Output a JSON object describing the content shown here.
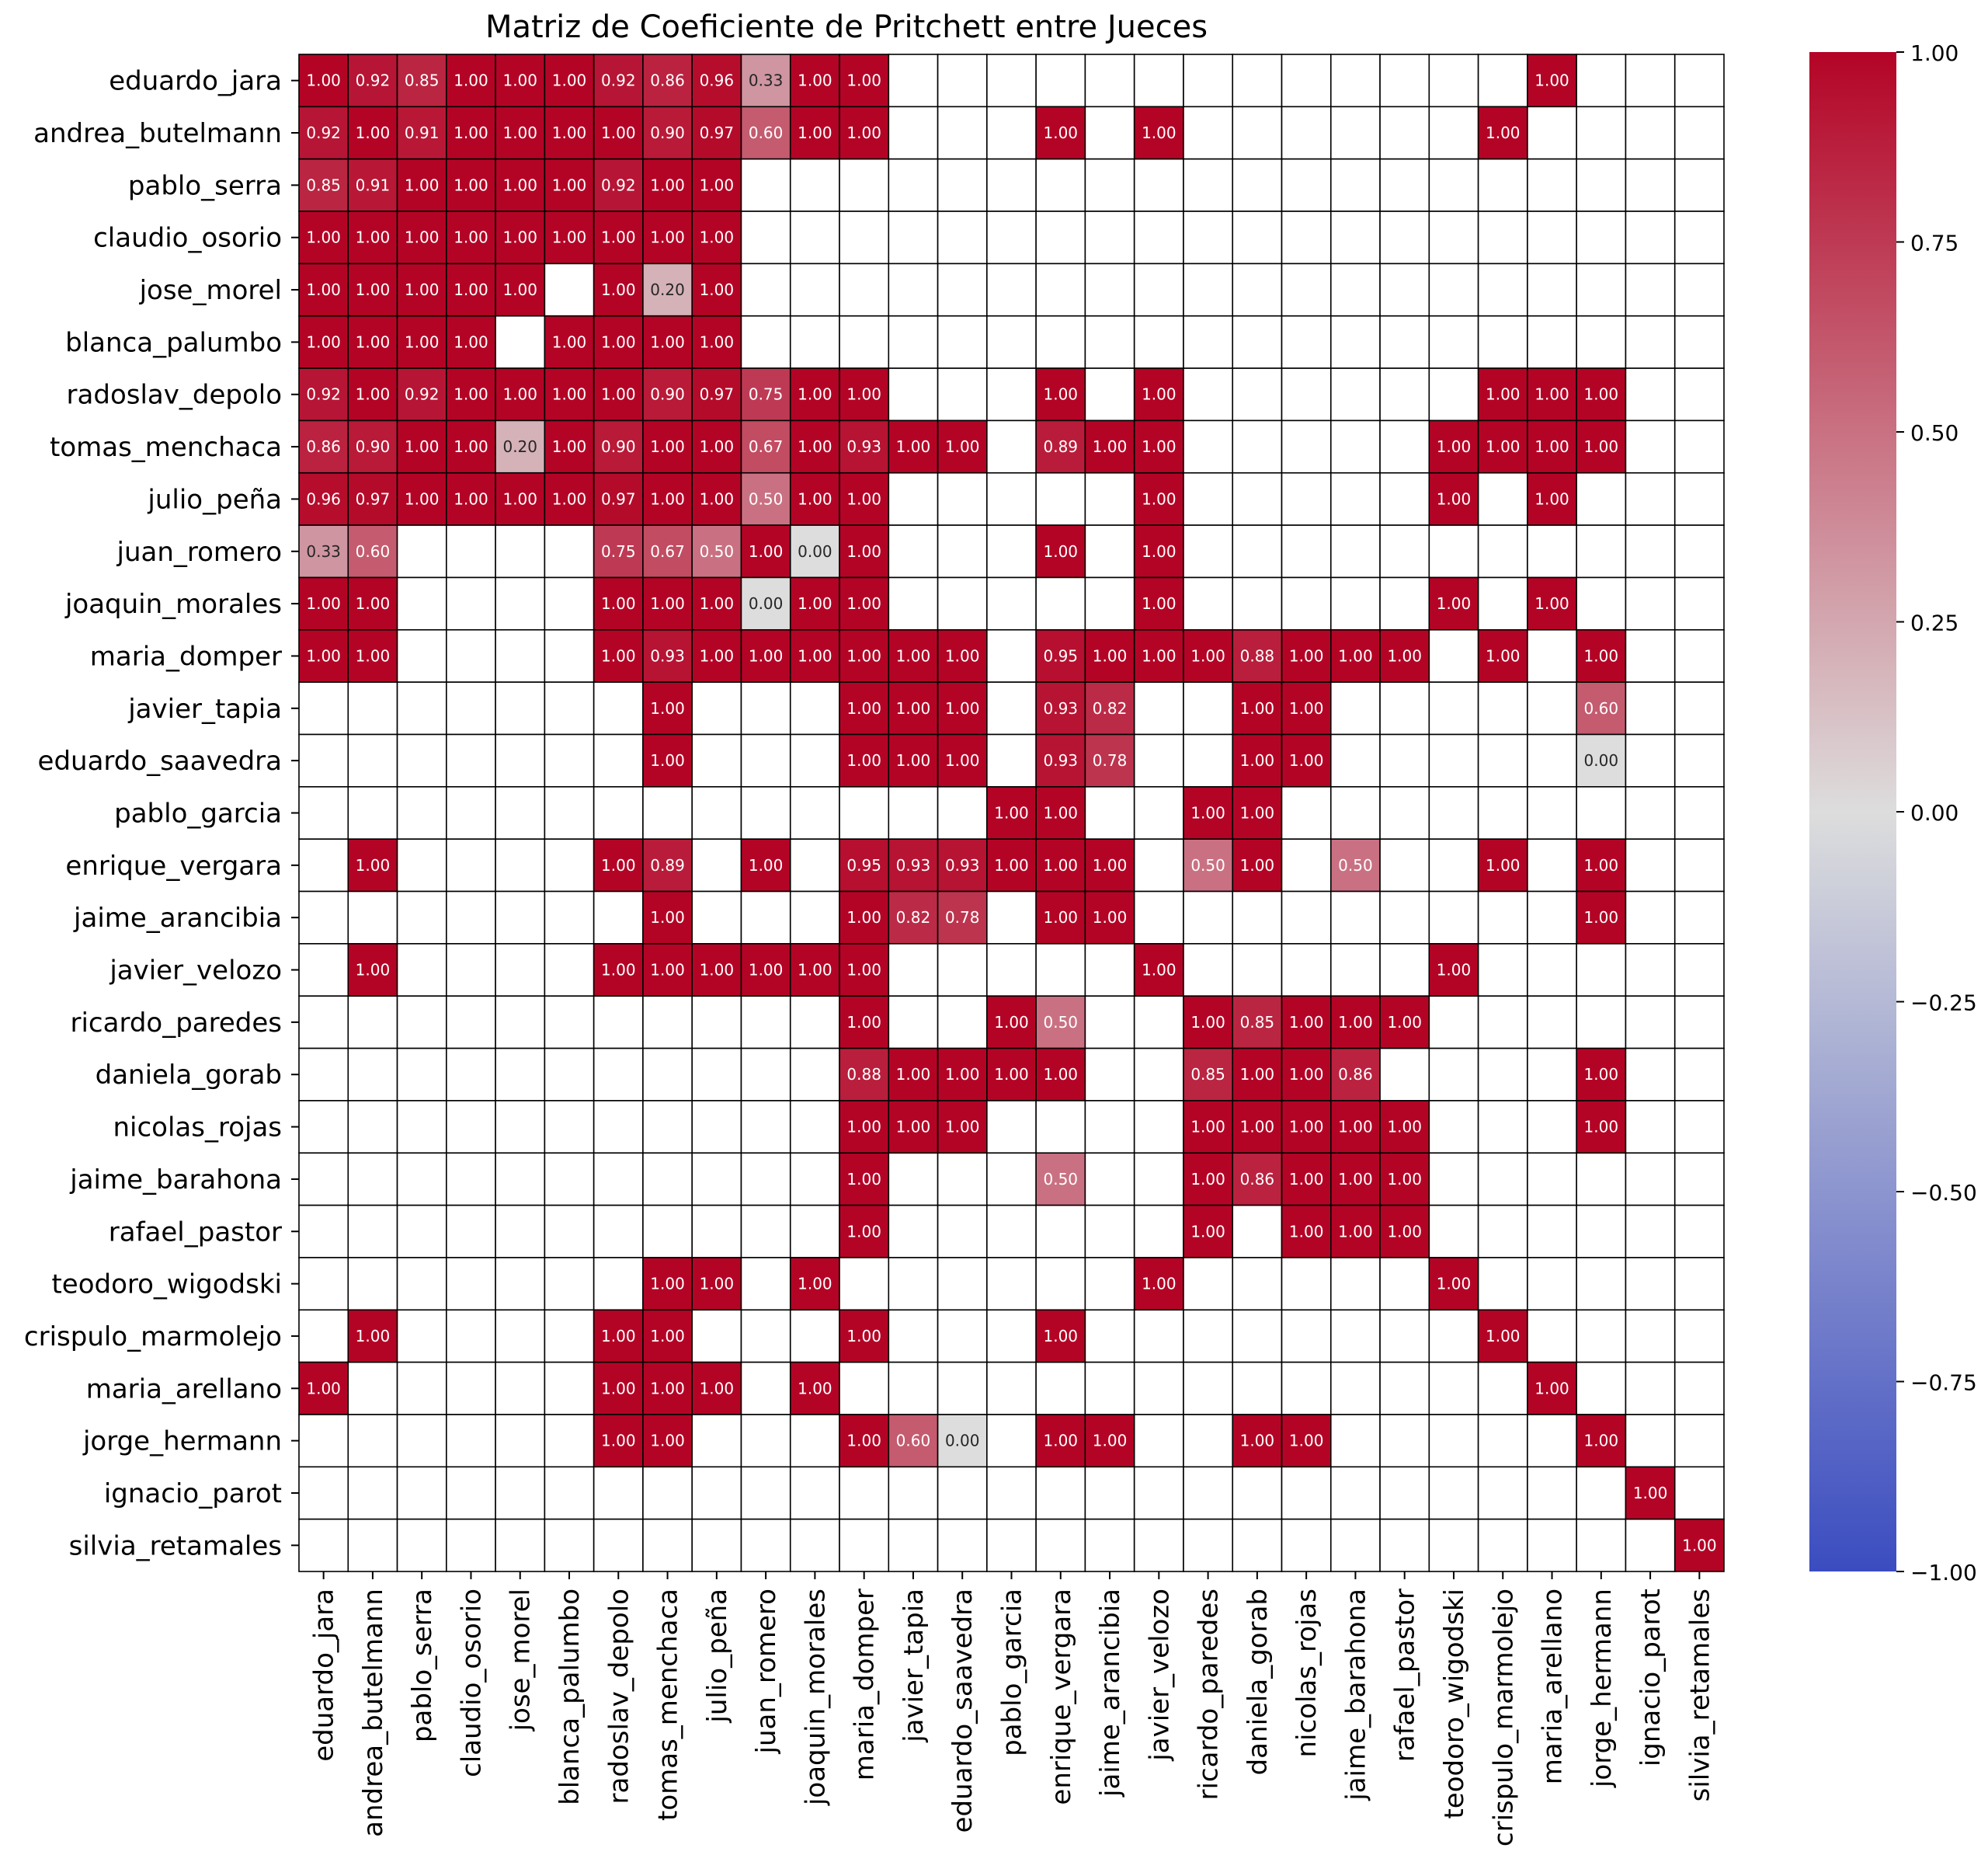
{
  "chart_data": {
    "type": "heatmap",
    "title": "Matriz de Coeficiente de Pritchett entre Jueces",
    "labels": [
      "eduardo_jara",
      "andrea_butelmann",
      "pablo_serra",
      "claudio_osorio",
      "jose_morel",
      "blanca_palumbo",
      "radoslav_depolo",
      "tomas_menchaca",
      "julio_peña",
      "juan_romero",
      "joaquin_morales",
      "maria_domper",
      "javier_tapia",
      "eduardo_saavedra",
      "pablo_garcia",
      "enrique_vergara",
      "jaime_arancibia",
      "javier_velozo",
      "ricardo_paredes",
      "daniela_gorab",
      "nicolas_rojas",
      "jaime_barahona",
      "rafael_pastor",
      "teodoro_wigodski",
      "crispulo_marmolejo",
      "maria_arellano",
      "jorge_hermann",
      "ignacio_parot",
      "silvia_retamales"
    ],
    "matrix": [
      [
        1.0,
        0.92,
        0.85,
        1.0,
        1.0,
        1.0,
        0.92,
        0.86,
        0.96,
        0.33,
        1.0,
        1.0,
        null,
        null,
        null,
        null,
        null,
        null,
        null,
        null,
        null,
        null,
        null,
        null,
        null,
        1.0,
        null,
        null,
        null
      ],
      [
        0.92,
        1.0,
        0.91,
        1.0,
        1.0,
        1.0,
        1.0,
        0.9,
        0.97,
        0.6,
        1.0,
        1.0,
        null,
        null,
        null,
        1.0,
        null,
        1.0,
        null,
        null,
        null,
        null,
        null,
        null,
        1.0,
        null,
        null,
        null,
        null
      ],
      [
        0.85,
        0.91,
        1.0,
        1.0,
        1.0,
        1.0,
        0.92,
        1.0,
        1.0,
        null,
        null,
        null,
        null,
        null,
        null,
        null,
        null,
        null,
        null,
        null,
        null,
        null,
        null,
        null,
        null,
        null,
        null,
        null,
        null
      ],
      [
        1.0,
        1.0,
        1.0,
        1.0,
        1.0,
        1.0,
        1.0,
        1.0,
        1.0,
        null,
        null,
        null,
        null,
        null,
        null,
        null,
        null,
        null,
        null,
        null,
        null,
        null,
        null,
        null,
        null,
        null,
        null,
        null,
        null
      ],
      [
        1.0,
        1.0,
        1.0,
        1.0,
        1.0,
        null,
        1.0,
        0.2,
        1.0,
        null,
        null,
        null,
        null,
        null,
        null,
        null,
        null,
        null,
        null,
        null,
        null,
        null,
        null,
        null,
        null,
        null,
        null,
        null,
        null
      ],
      [
        1.0,
        1.0,
        1.0,
        1.0,
        null,
        1.0,
        1.0,
        1.0,
        1.0,
        null,
        null,
        null,
        null,
        null,
        null,
        null,
        null,
        null,
        null,
        null,
        null,
        null,
        null,
        null,
        null,
        null,
        null,
        null,
        null
      ],
      [
        0.92,
        1.0,
        0.92,
        1.0,
        1.0,
        1.0,
        1.0,
        0.9,
        0.97,
        0.75,
        1.0,
        1.0,
        null,
        null,
        null,
        1.0,
        null,
        1.0,
        null,
        null,
        null,
        null,
        null,
        null,
        1.0,
        1.0,
        1.0,
        null,
        null
      ],
      [
        0.86,
        0.9,
        1.0,
        1.0,
        0.2,
        1.0,
        0.9,
        1.0,
        1.0,
        0.67,
        1.0,
        0.93,
        1.0,
        1.0,
        null,
        0.89,
        1.0,
        1.0,
        null,
        null,
        null,
        null,
        null,
        1.0,
        1.0,
        1.0,
        1.0,
        null,
        null
      ],
      [
        0.96,
        0.97,
        1.0,
        1.0,
        1.0,
        1.0,
        0.97,
        1.0,
        1.0,
        0.5,
        1.0,
        1.0,
        null,
        null,
        null,
        null,
        null,
        1.0,
        null,
        null,
        null,
        null,
        null,
        1.0,
        null,
        1.0,
        null,
        null,
        null
      ],
      [
        0.33,
        0.6,
        null,
        null,
        null,
        null,
        0.75,
        0.67,
        0.5,
        1.0,
        0.0,
        1.0,
        null,
        null,
        null,
        1.0,
        null,
        1.0,
        null,
        null,
        null,
        null,
        null,
        null,
        null,
        null,
        null,
        null,
        null
      ],
      [
        1.0,
        1.0,
        null,
        null,
        null,
        null,
        1.0,
        1.0,
        1.0,
        0.0,
        1.0,
        1.0,
        null,
        null,
        null,
        null,
        null,
        1.0,
        null,
        null,
        null,
        null,
        null,
        1.0,
        null,
        1.0,
        null,
        null,
        null
      ],
      [
        1.0,
        1.0,
        null,
        null,
        null,
        null,
        1.0,
        0.93,
        1.0,
        1.0,
        1.0,
        1.0,
        1.0,
        1.0,
        null,
        0.95,
        1.0,
        1.0,
        1.0,
        0.88,
        1.0,
        1.0,
        1.0,
        null,
        1.0,
        null,
        1.0,
        null,
        null
      ],
      [
        null,
        null,
        null,
        null,
        null,
        null,
        null,
        1.0,
        null,
        null,
        null,
        1.0,
        1.0,
        1.0,
        null,
        0.93,
        0.82,
        null,
        null,
        1.0,
        1.0,
        null,
        null,
        null,
        null,
        null,
        0.6,
        null,
        null
      ],
      [
        null,
        null,
        null,
        null,
        null,
        null,
        null,
        1.0,
        null,
        null,
        null,
        1.0,
        1.0,
        1.0,
        null,
        0.93,
        0.78,
        null,
        null,
        1.0,
        1.0,
        null,
        null,
        null,
        null,
        null,
        0.0,
        null,
        null
      ],
      [
        null,
        null,
        null,
        null,
        null,
        null,
        null,
        null,
        null,
        null,
        null,
        null,
        null,
        null,
        1.0,
        1.0,
        null,
        null,
        1.0,
        1.0,
        null,
        null,
        null,
        null,
        null,
        null,
        null,
        null,
        null
      ],
      [
        null,
        1.0,
        null,
        null,
        null,
        null,
        1.0,
        0.89,
        null,
        1.0,
        null,
        0.95,
        0.93,
        0.93,
        1.0,
        1.0,
        1.0,
        null,
        0.5,
        1.0,
        null,
        0.5,
        null,
        null,
        1.0,
        null,
        1.0,
        null,
        null
      ],
      [
        null,
        null,
        null,
        null,
        null,
        null,
        null,
        1.0,
        null,
        null,
        null,
        1.0,
        0.82,
        0.78,
        null,
        1.0,
        1.0,
        null,
        null,
        null,
        null,
        null,
        null,
        null,
        null,
        null,
        1.0,
        null,
        null
      ],
      [
        null,
        1.0,
        null,
        null,
        null,
        null,
        1.0,
        1.0,
        1.0,
        1.0,
        1.0,
        1.0,
        null,
        null,
        null,
        null,
        null,
        1.0,
        null,
        null,
        null,
        null,
        null,
        1.0,
        null,
        null,
        null,
        null,
        null
      ],
      [
        null,
        null,
        null,
        null,
        null,
        null,
        null,
        null,
        null,
        null,
        null,
        1.0,
        null,
        null,
        1.0,
        0.5,
        null,
        null,
        1.0,
        0.85,
        1.0,
        1.0,
        1.0,
        null,
        null,
        null,
        null,
        null,
        null
      ],
      [
        null,
        null,
        null,
        null,
        null,
        null,
        null,
        null,
        null,
        null,
        null,
        0.88,
        1.0,
        1.0,
        1.0,
        1.0,
        null,
        null,
        0.85,
        1.0,
        1.0,
        0.86,
        null,
        null,
        null,
        null,
        1.0,
        null,
        null
      ],
      [
        null,
        null,
        null,
        null,
        null,
        null,
        null,
        null,
        null,
        null,
        null,
        1.0,
        1.0,
        1.0,
        null,
        null,
        null,
        null,
        1.0,
        1.0,
        1.0,
        1.0,
        1.0,
        null,
        null,
        null,
        1.0,
        null,
        null
      ],
      [
        null,
        null,
        null,
        null,
        null,
        null,
        null,
        null,
        null,
        null,
        null,
        1.0,
        null,
        null,
        null,
        0.5,
        null,
        null,
        1.0,
        0.86,
        1.0,
        1.0,
        1.0,
        null,
        null,
        null,
        null,
        null,
        null
      ],
      [
        null,
        null,
        null,
        null,
        null,
        null,
        null,
        null,
        null,
        null,
        null,
        1.0,
        null,
        null,
        null,
        null,
        null,
        null,
        1.0,
        null,
        1.0,
        1.0,
        1.0,
        null,
        null,
        null,
        null,
        null,
        null
      ],
      [
        null,
        null,
        null,
        null,
        null,
        null,
        null,
        1.0,
        1.0,
        null,
        1.0,
        null,
        null,
        null,
        null,
        null,
        null,
        1.0,
        null,
        null,
        null,
        null,
        null,
        1.0,
        null,
        null,
        null,
        null,
        null
      ],
      [
        null,
        1.0,
        null,
        null,
        null,
        null,
        1.0,
        1.0,
        null,
        null,
        null,
        1.0,
        null,
        null,
        null,
        1.0,
        null,
        null,
        null,
        null,
        null,
        null,
        null,
        null,
        1.0,
        null,
        null,
        null,
        null
      ],
      [
        1.0,
        null,
        null,
        null,
        null,
        null,
        1.0,
        1.0,
        1.0,
        null,
        1.0,
        null,
        null,
        null,
        null,
        null,
        null,
        null,
        null,
        null,
        null,
        null,
        null,
        null,
        null,
        1.0,
        null,
        null,
        null
      ],
      [
        null,
        null,
        null,
        null,
        null,
        null,
        1.0,
        1.0,
        null,
        null,
        null,
        1.0,
        0.6,
        0.0,
        null,
        1.0,
        1.0,
        null,
        null,
        1.0,
        1.0,
        null,
        null,
        null,
        null,
        null,
        1.0,
        null,
        null
      ],
      [
        null,
        null,
        null,
        null,
        null,
        null,
        null,
        null,
        null,
        null,
        null,
        null,
        null,
        null,
        null,
        null,
        null,
        null,
        null,
        null,
        null,
        null,
        null,
        null,
        null,
        null,
        null,
        1.0,
        null
      ],
      [
        null,
        null,
        null,
        null,
        null,
        null,
        null,
        null,
        null,
        null,
        null,
        null,
        null,
        null,
        null,
        null,
        null,
        null,
        null,
        null,
        null,
        null,
        null,
        null,
        null,
        null,
        null,
        null,
        1.0
      ]
    ],
    "colormap": "coolwarm",
    "colormap_stops": [
      "#3b4cc0",
      "#dddddd",
      "#b40426"
    ],
    "vmin": -1.0,
    "vmax": 1.0,
    "colorbar_ticks": [
      "1.00",
      "0.75",
      "0.50",
      "0.25",
      "0.00",
      "−0.25",
      "−0.50",
      "−0.75",
      "−1.00"
    ],
    "grid_color": "#000000"
  }
}
